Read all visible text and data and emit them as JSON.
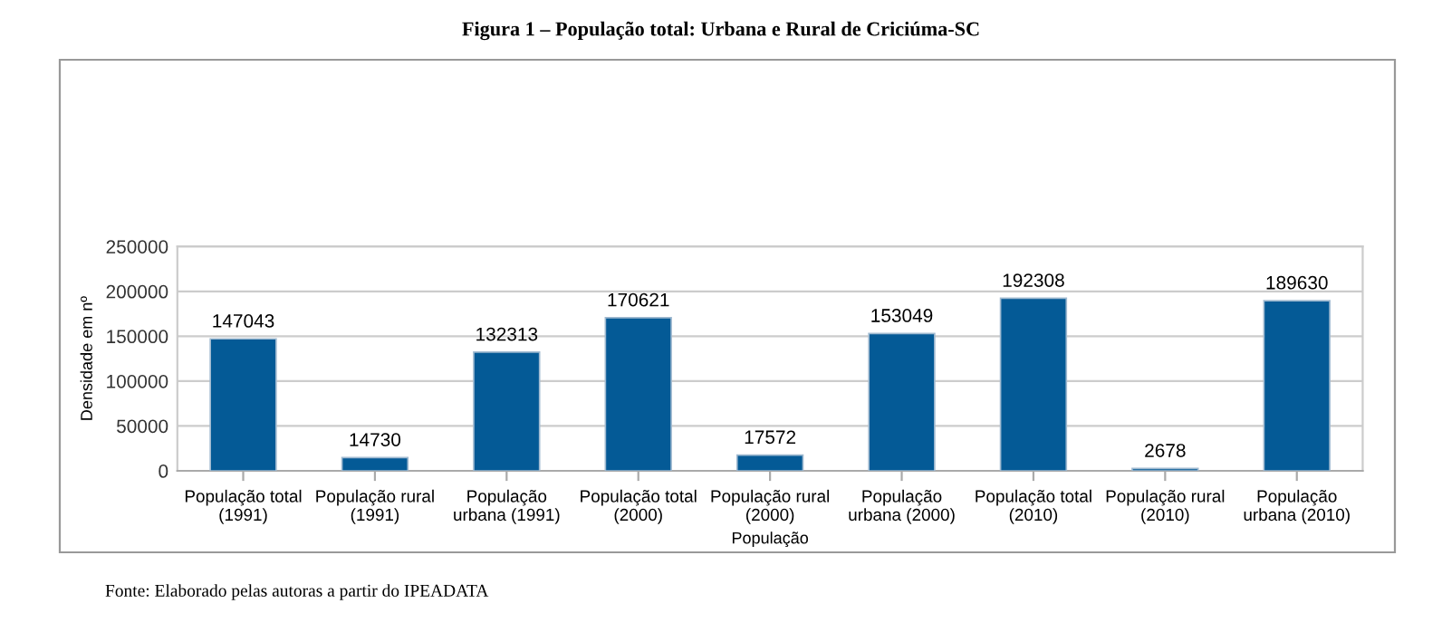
{
  "chart_data": {
    "type": "bar",
    "title": "Figura 1 – População total: Urbana e Rural de Criciúma-SC",
    "categories": [
      "População total\n(1991)",
      "População rural\n(1991)",
      "População\nurbana (1991)",
      "População total\n(2000)",
      "População rural\n(2000)",
      "População\nurbana (2000)",
      "População total\n(2010)",
      "População rural\n(2010)",
      "População\nurbana (2010)"
    ],
    "values": [
      147043,
      14730,
      132313,
      170621,
      17572,
      153049,
      192308,
      2678,
      189630
    ],
    "color": "#045a96",
    "xlabel": "População",
    "ylabel": "Densidade em nº",
    "ylim": [
      0,
      250000
    ],
    "yticks": [
      0,
      50000,
      100000,
      150000,
      200000,
      250000
    ],
    "grid": "y",
    "data_labels": true,
    "annotations": [
      "Fonte: Elaborado pelas autoras a partir do IPEADATA"
    ]
  }
}
